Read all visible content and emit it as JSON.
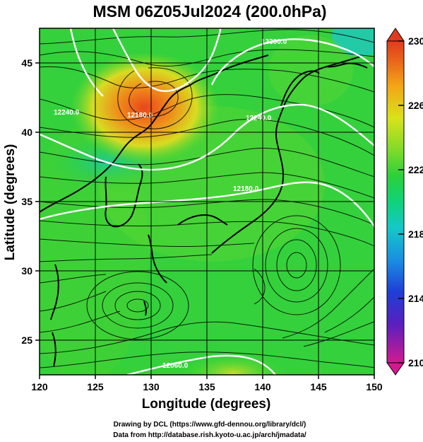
{
  "title": "MSM 06Z05Jul2024 (200.0hPa)",
  "x_axis": {
    "label": "Longitude (degrees)",
    "range": [
      120,
      150
    ],
    "ticks": [
      "120",
      "125",
      "130",
      "135",
      "140",
      "145",
      "150"
    ]
  },
  "y_axis": {
    "label": "Latitude  (degrees)",
    "range": [
      22.5,
      47.5
    ],
    "ticks": [
      "25",
      "30",
      "35",
      "40",
      "45"
    ]
  },
  "colorbar": {
    "range": [
      210,
      230
    ],
    "ticks": [
      "230",
      "226",
      "222",
      "218",
      "214",
      "210"
    ],
    "colors": [
      "#d21a8f",
      "#5a1fbf",
      "#1f3ed6",
      "#1a8fe0",
      "#14c8c8",
      "#10d27a",
      "#2bd13a",
      "#7fda2a",
      "#d9e21a",
      "#f2a616",
      "#e8641b",
      "#e23a1e"
    ]
  },
  "contours": {
    "labels": [
      "12300.0",
      "12240.0",
      "12240.0",
      "12180.0",
      "12180.0",
      "12060.0"
    ],
    "color": "#ffffff"
  },
  "credits": {
    "line1": "Drawing by DCL (https://www.gfd-dennou.org/library/dcl/)",
    "line2": "Data from http://database.rish.kyoto-u.ac.jp/arch/jmadata/"
  }
}
